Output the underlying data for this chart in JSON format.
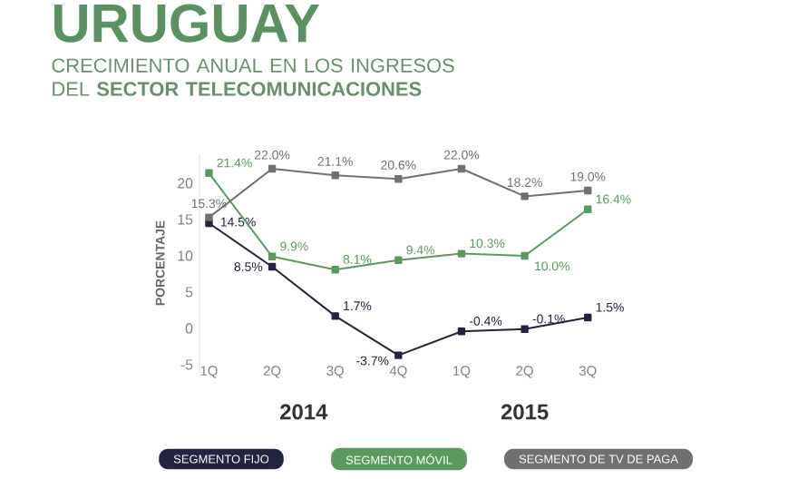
{
  "chart_data": {
    "type": "line",
    "title": "URUGUAY",
    "subtitle": "CRECIMIENTO ANUAL EN LOS INGRESOS DEL **SECTOR TELECOMUNICACIONES**",
    "ylabel": "PORCENTAJE",
    "categories": [
      "1Q",
      "2Q",
      "3Q",
      "4Q",
      "1Q",
      "2Q",
      "3Q"
    ],
    "series": [
      {
        "name": "SEGMENTO FIJO",
        "color": "#23243f",
        "values": [
          14.5,
          8.5,
          1.7,
          -3.7,
          -0.4,
          -0.1,
          1.5
        ],
        "value_labels": [
          "14.5%",
          "8.5%",
          "1.7%",
          "-3.7%",
          "-0.4%",
          "-0.1%",
          "1.5%"
        ]
      },
      {
        "name": "SEGMENTO MÓVIL",
        "color": "#5b9a5e",
        "values": [
          21.4,
          9.9,
          8.1,
          9.4,
          10.3,
          10.0,
          16.4
        ],
        "value_labels": [
          "21.4%",
          "9.9%",
          "8.1%",
          "9.4%",
          "10.3%",
          "10.0%",
          "16.4%"
        ]
      },
      {
        "name": "SEGMENTO DE TV DE PAGA",
        "color": "#707070",
        "values": [
          15.3,
          22.0,
          21.1,
          20.6,
          22.0,
          18.2,
          19.0
        ],
        "value_labels": [
          "15.3%",
          "22.0%",
          "21.1%",
          "20.6%",
          "22.0%",
          "18.2%",
          "19.0%"
        ]
      }
    ],
    "annotations": [
      "2014",
      "2015"
    ],
    "ylim": [
      -6,
      24
    ],
    "yticks": [
      -5,
      0,
      5,
      10,
      15,
      20
    ],
    "marker": "square",
    "line_style": "solid",
    "legend": "bottom"
  }
}
